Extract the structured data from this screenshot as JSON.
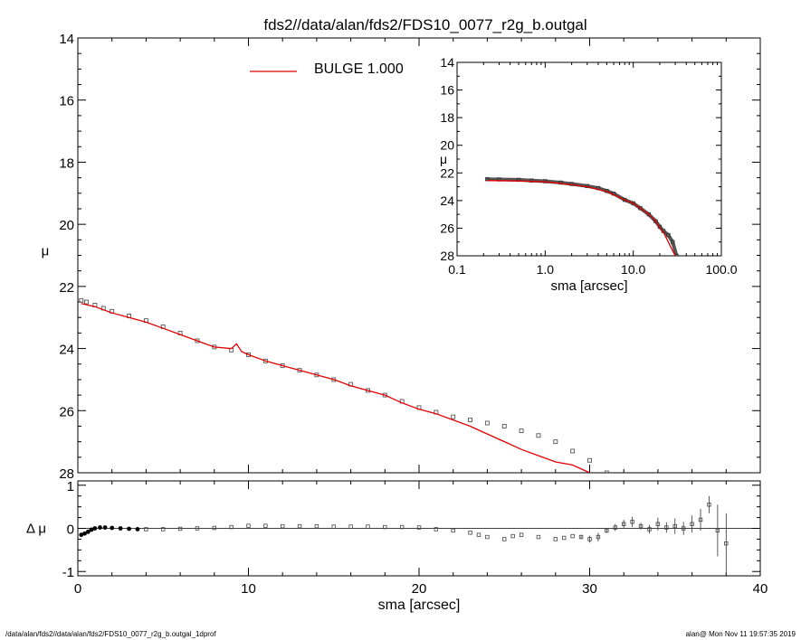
{
  "title": "fds2//data/alan/fds2/FDS10_0077_r2g_b.outgal",
  "footer_left": "/data/alan/fds2//data/alan/fds2/FDS10_0077_r2g_b.outgal_1dprof",
  "footer_right": "alan@  Mon Nov 11 19:57:35 2019",
  "chart_data": [
    {
      "panel": "main",
      "type": "scatter",
      "xlabel": "sma [arcsec]",
      "ylabel": "μ",
      "xlim": [
        0,
        40
      ],
      "ylim": [
        28,
        14
      ],
      "y_inverted": true,
      "xticks": [
        "0",
        "10",
        "20",
        "30",
        "40"
      ],
      "yticks": [
        "14",
        "16",
        "18",
        "20",
        "22",
        "24",
        "26",
        "28"
      ],
      "legend": {
        "label": "BULGE  1.000",
        "color": "#e00000",
        "position": "top-left"
      },
      "observed_color": "#555555",
      "model_color": "#e00000",
      "series": [
        {
          "kind": "observed",
          "x": [
            0.2,
            0.5,
            1.0,
            1.5,
            2.0,
            3.0,
            4.0,
            5.0,
            6.0,
            7.0,
            8.0,
            9.0,
            10.0,
            11.0,
            12.0,
            13.0,
            14.0,
            15.0,
            16.0,
            17.0,
            18.0,
            19.0,
            20.0,
            21.0,
            22.0,
            23.0,
            24.0,
            25.0,
            26.0,
            27.0,
            28.0,
            29.0,
            30.0,
            31.0
          ],
          "y": [
            22.45,
            22.5,
            22.6,
            22.7,
            22.8,
            22.95,
            23.1,
            23.3,
            23.5,
            23.75,
            23.95,
            24.05,
            24.2,
            24.4,
            24.55,
            24.7,
            24.85,
            25.0,
            25.15,
            25.35,
            25.5,
            25.7,
            25.9,
            26.05,
            26.2,
            26.3,
            26.4,
            26.5,
            26.65,
            26.8,
            27.0,
            27.3,
            27.6,
            28.0
          ]
        },
        {
          "kind": "model",
          "x": [
            0.2,
            1.0,
            2.0,
            3.0,
            4.0,
            5.0,
            6.0,
            7.0,
            8.0,
            9.0,
            9.3,
            9.6,
            10.0,
            11.0,
            12.0,
            13.0,
            14.0,
            15.0,
            16.0,
            17.0,
            18.0,
            19.0,
            20.0,
            21.0,
            22.0,
            23.0,
            24.0,
            25.0,
            26.0,
            27.0,
            28.0,
            29.0,
            30.0
          ],
          "y": [
            22.55,
            22.65,
            22.85,
            23.0,
            23.15,
            23.35,
            23.55,
            23.75,
            23.95,
            24.0,
            23.85,
            24.1,
            24.2,
            24.4,
            24.55,
            24.7,
            24.85,
            25.0,
            25.2,
            25.35,
            25.5,
            25.75,
            25.95,
            26.1,
            26.3,
            26.5,
            26.75,
            27.0,
            27.25,
            27.45,
            27.65,
            27.75,
            28.0
          ]
        }
      ]
    },
    {
      "panel": "inset",
      "type": "scatter",
      "xlabel": "sma [arcsec]",
      "ylabel": "μ",
      "x_scale": "log",
      "xlim": [
        0.1,
        100
      ],
      "ylim": [
        28,
        14
      ],
      "y_inverted": true,
      "xticks": [
        "0.1",
        "1.0",
        "10.0",
        "100.0"
      ],
      "yticks": [
        "14",
        "16",
        "18",
        "20",
        "22",
        "24",
        "26",
        "28"
      ],
      "series": [
        {
          "kind": "observed",
          "x": [
            0.22,
            0.3,
            0.5,
            0.7,
            1.0,
            1.5,
            2.0,
            3.0,
            4.0,
            5.0,
            6.0,
            8.0,
            10.0,
            12.0,
            15.0,
            18.0,
            20.0,
            22.0,
            25.0,
            28.0,
            31.0
          ],
          "y": [
            22.45,
            22.47,
            22.5,
            22.55,
            22.6,
            22.7,
            22.8,
            22.95,
            23.1,
            23.3,
            23.5,
            23.95,
            24.2,
            24.55,
            25.0,
            25.5,
            25.9,
            26.2,
            26.5,
            27.0,
            28.0
          ]
        },
        {
          "kind": "model",
          "x": [
            0.22,
            0.5,
            1.0,
            2.0,
            3.0,
            5.0,
            8.0,
            10.0,
            12.0,
            15.0,
            18.0,
            20.0,
            22.0,
            25.0,
            28.0,
            30.0
          ],
          "y": [
            22.55,
            22.58,
            22.65,
            22.85,
            23.0,
            23.35,
            23.95,
            24.2,
            24.55,
            25.0,
            25.5,
            25.95,
            26.3,
            27.0,
            27.65,
            28.0
          ]
        }
      ]
    },
    {
      "panel": "residual",
      "type": "scatter",
      "xlabel": "sma [arcsec]",
      "ylabel": "Δ μ",
      "xlim": [
        0,
        40
      ],
      "ylim": [
        -1,
        1
      ],
      "xticks": [
        "0",
        "10",
        "20",
        "30",
        "40"
      ],
      "yticks": [
        "-1",
        "0",
        "1"
      ],
      "series": [
        {
          "kind": "residual",
          "x": [
            0.2,
            0.4,
            0.6,
            0.8,
            1.0,
            1.3,
            1.6,
            2.0,
            2.5,
            3.0,
            3.5,
            4.0,
            5.0,
            6.0,
            7.0,
            8.0,
            9.0,
            10.0,
            11.0,
            12.0,
            13.0,
            14.0,
            15.0,
            16.0,
            17.0,
            18.0,
            19.0,
            20.0,
            21.0,
            22.0,
            23.0,
            23.5,
            24.0,
            25.0,
            25.5,
            26.0,
            27.0,
            28.0,
            28.5,
            29.0,
            29.5,
            30.0,
            30.5,
            31.0,
            31.5,
            32.0,
            32.5,
            33.0,
            33.5,
            34.0,
            34.5,
            35.0,
            35.5,
            36.0,
            36.5,
            37.0,
            37.5,
            38.0
          ],
          "y": [
            -0.15,
            -0.12,
            -0.08,
            -0.03,
            0.0,
            0.02,
            0.02,
            0.01,
            0.0,
            -0.01,
            -0.02,
            -0.02,
            -0.02,
            -0.01,
            0.0,
            0.01,
            0.03,
            0.06,
            0.06,
            0.05,
            0.05,
            0.05,
            0.04,
            0.04,
            0.04,
            0.03,
            0.03,
            0.02,
            -0.02,
            -0.05,
            -0.1,
            -0.15,
            -0.2,
            -0.25,
            -0.18,
            -0.15,
            -0.2,
            -0.25,
            -0.22,
            -0.18,
            -0.2,
            -0.25,
            -0.2,
            -0.05,
            0.02,
            0.1,
            0.15,
            0.05,
            -0.02,
            0.1,
            0.02,
            0.05,
            0.0,
            0.1,
            0.2,
            0.55,
            -0.05,
            -0.35
          ],
          "err": [
            0,
            0,
            0,
            0,
            0,
            0,
            0,
            0,
            0,
            0,
            0,
            0,
            0,
            0,
            0,
            0,
            0,
            0,
            0,
            0,
            0,
            0,
            0,
            0,
            0,
            0,
            0,
            0,
            0,
            0,
            0,
            0,
            0,
            0,
            0,
            0,
            0,
            0,
            0,
            0,
            0.05,
            0.08,
            0.1,
            0.06,
            0.08,
            0.1,
            0.12,
            0.08,
            0.1,
            0.15,
            0.12,
            0.18,
            0.15,
            0.2,
            0.25,
            0.2,
            0.6,
            0.7
          ]
        }
      ]
    }
  ]
}
